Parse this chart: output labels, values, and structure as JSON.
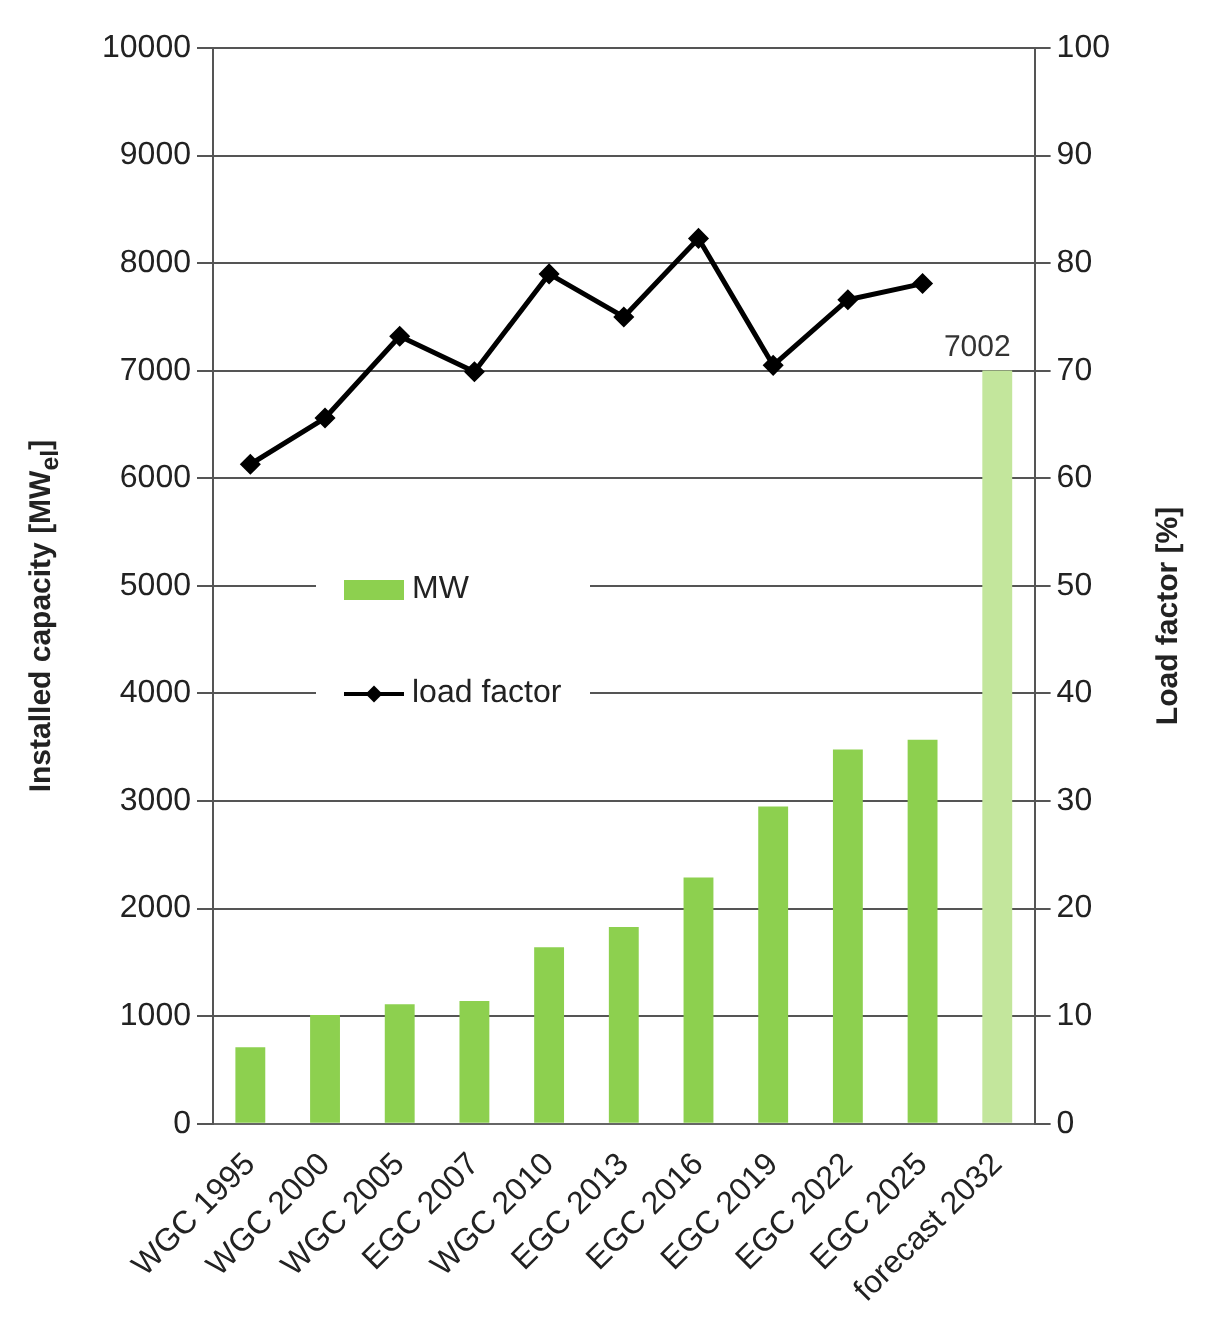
{
  "chart_data": {
    "type": "bar",
    "ylabel": "Installed capacity [MW$_{el}$]",
    "y2label": "Load factor [%]",
    "categories": [
      "WGC 1995",
      "WGC 2000",
      "WGC 2005",
      "EGC 2007",
      "WGC 2010",
      "EGC 2013",
      "EGC 2016",
      "EGC 2019",
      "EGC 2022",
      "EGC 2025",
      "forecast 2032"
    ],
    "series": [
      {
        "name": "MW",
        "color": "#8dd04f",
        "colors": [
          "#8dd04f",
          "#8dd04f",
          "#8dd04f",
          "#8dd04f",
          "#8dd04f",
          "#8dd04f",
          "#8dd04f",
          "#8dd04f",
          "#8dd04f",
          "#8dd04f",
          "#c3e69c"
        ],
        "values": [
          710,
          1010,
          1110,
          1140,
          1640,
          1830,
          2290,
          2950,
          3480,
          3570,
          7002
        ],
        "value_labels": [
          null,
          null,
          null,
          null,
          null,
          null,
          null,
          null,
          null,
          null,
          "7002"
        ]
      },
      {
        "name": "load factor",
        "type": "line",
        "axis": "y2",
        "color": "#000000",
        "values": [
          61.3,
          65.6,
          73.2,
          69.9,
          79.0,
          75.0,
          82.3,
          70.5,
          76.6,
          78.1,
          null
        ]
      }
    ],
    "ylim": [
      0,
      10000
    ],
    "yticks": [
      0,
      1000,
      2000,
      3000,
      4000,
      5000,
      6000,
      7000,
      8000,
      9000,
      10000
    ],
    "y2lim": [
      0,
      100
    ],
    "y2ticks": [
      0,
      10,
      20,
      30,
      40,
      50,
      60,
      70,
      80,
      90,
      100
    ],
    "grid": "y",
    "legend": "center",
    "marker": "diamond",
    "line_style": "solid"
  }
}
